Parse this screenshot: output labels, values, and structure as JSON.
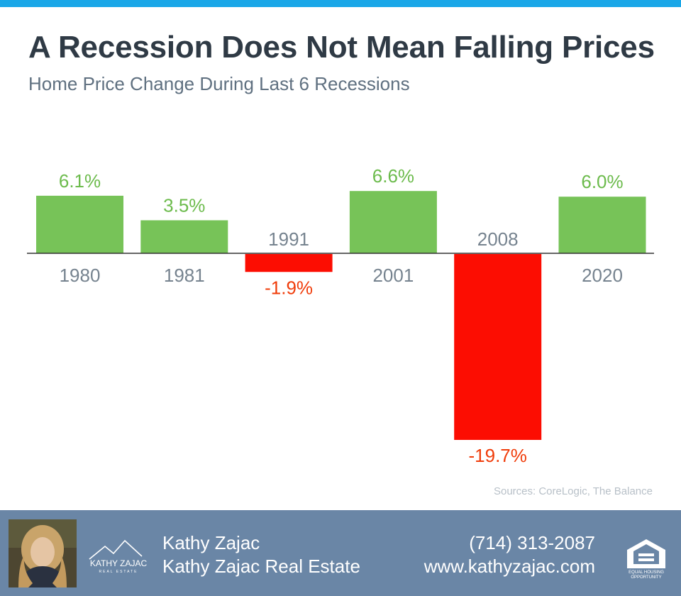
{
  "header": {
    "title": "A Recession Does Not Mean Falling Prices",
    "subtitle": "Home Price Change During Last 6 Recessions"
  },
  "chart_data": {
    "type": "bar",
    "title": "A Recession Does Not Mean Falling Prices",
    "subtitle": "Home Price Change During Last 6 Recessions",
    "categories": [
      "1980",
      "1981",
      "1991",
      "2001",
      "2008",
      "2020"
    ],
    "values": [
      6.1,
      3.5,
      -1.9,
      6.6,
      -19.7,
      6.0
    ],
    "value_labels": [
      "6.1%",
      "3.5%",
      "-1.9%",
      "6.6%",
      "-19.7%",
      "6.0%"
    ],
    "unit": "%",
    "xlabel": "",
    "ylabel": "",
    "ylim": [
      -19.7,
      6.6
    ],
    "grid": false,
    "legend": "none",
    "colors": {
      "positive": "#77c358",
      "negative": "#fc0d02",
      "positive_label": "#6cbb4c",
      "negative_label": "#f03c0a",
      "category_label": "#76838f",
      "baseline": "#333333"
    }
  },
  "sources": "Sources: CoreLogic, The Balance",
  "footer": {
    "agent_name": "Kathy Zajac",
    "company": "Kathy Zajac Real Estate",
    "phone": "(714) 313-2087",
    "website": "www.kathyzajac.com",
    "logo_text": "KATHY ZAJAC",
    "logo_subtext": "REAL ESTATE",
    "eho_text_1": "EQUAL HOUSING",
    "eho_text_2": "OPPORTUNITY"
  }
}
